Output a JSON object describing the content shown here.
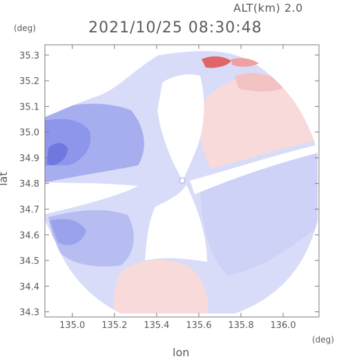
{
  "chart_data": {
    "type": "heatmap",
    "altitude_label": "ALT(km) 2.0",
    "timestamp": "2021/10/25 08:30:48",
    "xlabel": "lon",
    "ylabel": "lat",
    "x_unit": "(deg)",
    "y_unit": "(deg)",
    "xlim": [
      134.87,
      136.17
    ],
    "ylim": [
      34.28,
      35.34
    ],
    "x_ticks": [
      135.0,
      135.2,
      135.4,
      135.6,
      135.8,
      136.0
    ],
    "x_tick_labels": [
      "135.0",
      "135.2",
      "135.4",
      "135.6",
      "135.8",
      "136.0"
    ],
    "y_ticks": [
      34.3,
      34.4,
      34.5,
      34.6,
      34.7,
      34.8,
      34.9,
      35.0,
      35.1,
      35.2,
      35.3
    ],
    "y_tick_labels": [
      "34.3",
      "34.4",
      "34.5",
      "34.6",
      "34.7",
      "34.8",
      "34.9",
      "35.0",
      "35.1",
      "35.2",
      "35.3"
    ],
    "radar_center": [
      135.52,
      34.81
    ],
    "colors": {
      "negative_strong": "#6f78e0",
      "negative_medium": "#9aa2ec",
      "negative_light": "#d8dcf8",
      "positive_light": "#f8d8d8",
      "positive_medium": "#f3b5b5",
      "positive_strong": "#e25050"
    }
  }
}
